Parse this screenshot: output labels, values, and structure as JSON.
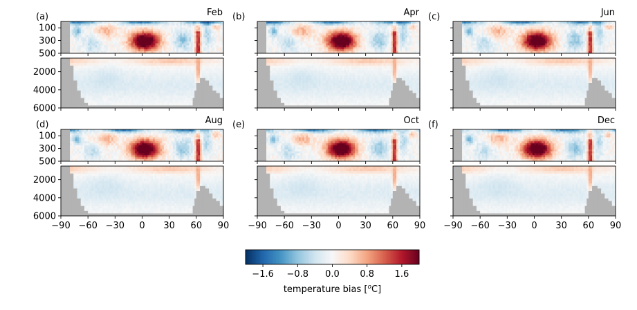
{
  "chart_data": {
    "type": "heatmap",
    "x_ticks": [
      -90,
      -60,
      -30,
      0,
      30,
      60,
      90
    ],
    "xlim": [
      -90,
      90
    ],
    "upper_panel": {
      "ylim": [
        0,
        500
      ],
      "y_ticks": [
        100,
        300,
        500
      ],
      "inverted": true
    },
    "lower_panel": {
      "ylim": [
        500,
        6000
      ],
      "y_ticks": [
        2000,
        4000,
        6000
      ],
      "inverted": true
    },
    "panels": [
      {
        "label": "(a)",
        "month": "Feb"
      },
      {
        "label": "(b)",
        "month": "Apr"
      },
      {
        "label": "(c)",
        "month": "Jun"
      },
      {
        "label": "(d)",
        "month": "Aug"
      },
      {
        "label": "(e)",
        "month": "Oct"
      },
      {
        "label": "(f)",
        "month": "Dec"
      }
    ],
    "colorbar": {
      "label": "temperature bias [°C]",
      "vmin": -2.0,
      "vmax": 2.0,
      "ticks": [
        -1.6,
        -0.8,
        0.0,
        0.8,
        1.6
      ],
      "colormap": "RdBu_r"
    },
    "land_color": "#b3b3b3",
    "grid": false
  }
}
